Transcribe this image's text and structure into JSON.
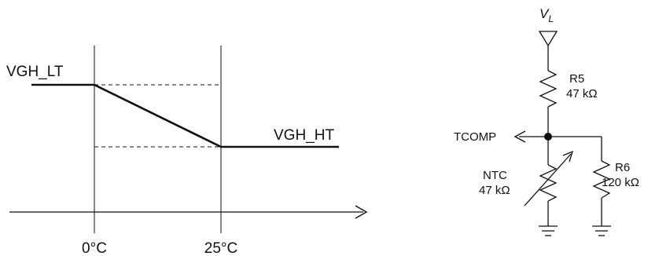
{
  "graph": {
    "label_low": "VGH_LT",
    "label_high": "VGH_HT",
    "tick_0": "0°C",
    "tick_25": "25°C"
  },
  "circuit": {
    "supply_symbol": "V",
    "supply_subscript": "L",
    "r5_name": "R5",
    "r5_value": "47 kΩ",
    "output_label": "TCOMP",
    "ntc_name": "NTC",
    "ntc_value": "47 kΩ",
    "r6_name": "R6",
    "r6_value": "120 kΩ"
  }
}
